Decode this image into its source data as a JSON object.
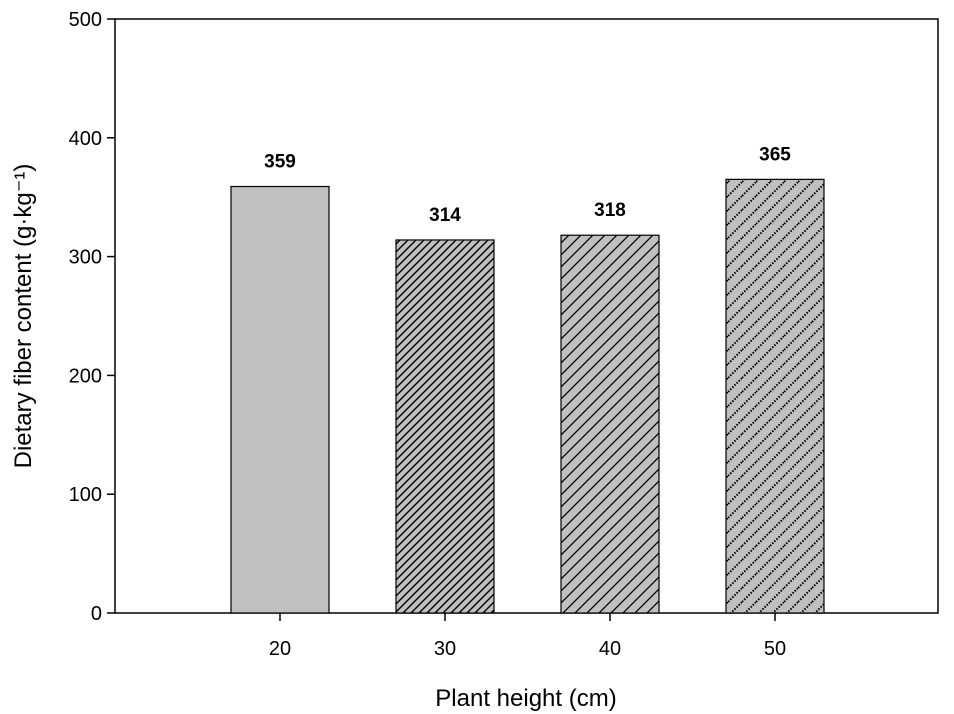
{
  "chart_data": {
    "type": "bar",
    "categories": [
      "20",
      "30",
      "40",
      "50"
    ],
    "values": [
      359,
      314,
      318,
      365
    ],
    "data_labels": [
      "359",
      "314",
      "318",
      "365"
    ],
    "title": "",
    "xlabel": "Plant height (cm)",
    "ylabel": "Dietary fiber content (g·kg⁻¹)",
    "ylim": [
      0,
      500
    ],
    "yticks": [
      0,
      100,
      200,
      300,
      400,
      500
    ],
    "ytick_labels": [
      "0",
      "100",
      "200",
      "300",
      "400",
      "500"
    ],
    "grid": false,
    "legend": "none",
    "bar_fill": "#c0c0c0",
    "bar_patterns": [
      "solid",
      "dense-diagonal",
      "sparse-diagonal",
      "dotted-diagonal"
    ]
  }
}
